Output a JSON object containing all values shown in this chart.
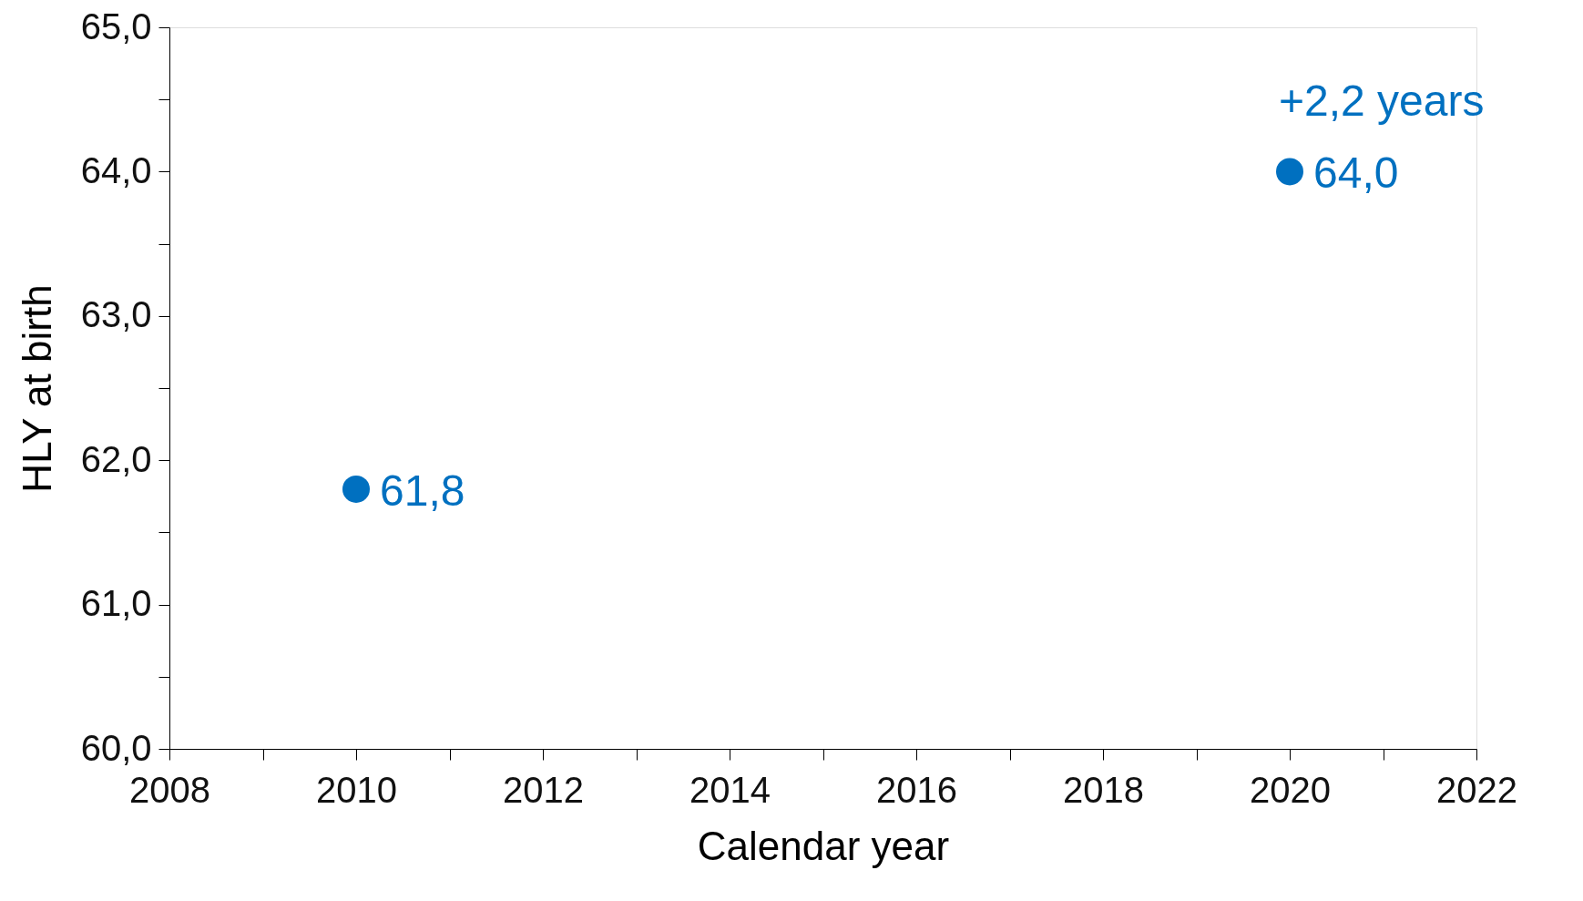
{
  "chart_data": {
    "type": "scatter",
    "x": [
      2010,
      2020
    ],
    "series": [
      {
        "color": "#0070c0",
        "values": [
          61.8,
          64.0
        ],
        "value_labels": [
          "61,8",
          "64,0"
        ]
      }
    ],
    "xlabel": "Calendar year",
    "ylabel": "HLY at birth",
    "xlim": [
      2008,
      2022
    ],
    "xticks": [
      2008,
      {
        "value": 2009,
        "label": null
      },
      2010,
      {
        "value": 2011,
        "label": null
      },
      2012,
      {
        "value": 2013,
        "label": null
      },
      2014,
      {
        "value": 2015,
        "label": null
      },
      2016,
      {
        "value": 2017,
        "label": null
      },
      2018,
      {
        "value": 2019,
        "label": null
      },
      2020,
      {
        "value": 2021,
        "label": null
      },
      2022
    ],
    "ylim": [
      60,
      65
    ],
    "yticks": [
      {
        "value": 60,
        "label": "60,0"
      },
      {
        "value": 60.5,
        "label": null
      },
      {
        "value": 61,
        "label": "61,0"
      },
      {
        "value": 61.5,
        "label": null
      },
      {
        "value": 62,
        "label": "62,0"
      },
      {
        "value": 62.5,
        "label": null
      },
      {
        "value": 63,
        "label": "63,0"
      },
      {
        "value": 63.5,
        "label": null
      },
      {
        "value": 64,
        "label": "64,0"
      },
      {
        "value": 64.5,
        "label": null
      },
      {
        "value": 65,
        "label": "65,0"
      }
    ],
    "annotations": [
      "+2,2 years"
    ],
    "marker": "circle",
    "grid": false,
    "legend": false
  }
}
